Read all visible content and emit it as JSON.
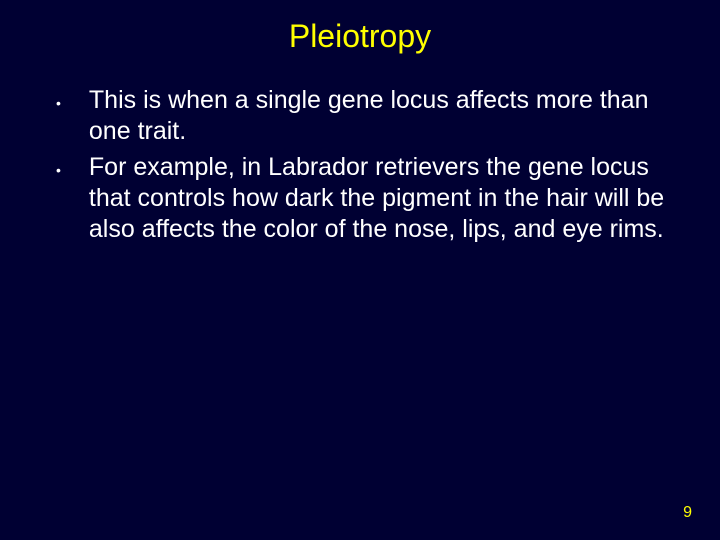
{
  "slide": {
    "title": "Pleiotropy",
    "background_color": "#000033",
    "title_color": "#ffff00",
    "title_fontsize": 32,
    "body_color": "#ffffff",
    "body_fontsize": 25,
    "page_number_color": "#ffff00",
    "page_number_fontsize": 16,
    "bullets": [
      {
        "marker": "•",
        "text": "This is when a single gene locus affects more than one trait."
      },
      {
        "marker": "•",
        "text": "For example, in Labrador retrievers the gene locus that controls how dark the pigment in the hair will be also affects the color of the nose, lips, and eye rims."
      }
    ],
    "page_number": "9"
  }
}
